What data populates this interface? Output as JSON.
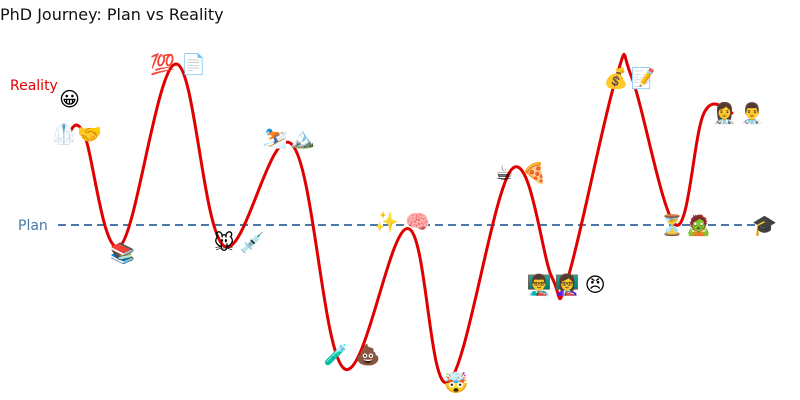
{
  "chart_data": {
    "type": "line",
    "title": "PhD Journey: Plan vs Reality",
    "xlabel": "",
    "ylabel": "",
    "xlim": [
      0,
      100
    ],
    "ylim": [
      0,
      100
    ],
    "grid": false,
    "axes_visible": false,
    "series": [
      {
        "name": "Plan",
        "color": "#4a78a8",
        "style": "dashed",
        "x": [
          2,
          99
        ],
        "y": [
          50,
          50
        ]
      },
      {
        "name": "Reality",
        "color": "#e00000",
        "style": "solid",
        "x": [
          8.5,
          10.5,
          15,
          22,
          28,
          36.5,
          43,
          51,
          56,
          64,
          69,
          71,
          77,
          79,
          84.5,
          88,
          91.5
        ],
        "y": [
          76,
          76,
          44,
          96,
          44,
          73,
          9,
          49,
          5,
          66,
          35,
          35,
          92,
          92,
          50,
          82,
          82
        ]
      }
    ],
    "annotations": [
      {
        "x": 8.7,
        "y": 86,
        "emoji": "😀"
      },
      {
        "x": 8.0,
        "y": 76,
        "emoji": "🥼"
      },
      {
        "x": 11.2,
        "y": 76,
        "emoji": "🤝"
      },
      {
        "x": 15.3,
        "y": 42,
        "emoji": "📚"
      },
      {
        "x": 20.3,
        "y": 96,
        "emoji": "💯"
      },
      {
        "x": 24.2,
        "y": 96,
        "emoji": "📄"
      },
      {
        "x": 28.0,
        "y": 45,
        "emoji": "🐭"
      },
      {
        "x": 31.5,
        "y": 45,
        "emoji": "💉"
      },
      {
        "x": 34.4,
        "y": 75,
        "emoji": "⛷️"
      },
      {
        "x": 37.8,
        "y": 75,
        "emoji": "🏔️"
      },
      {
        "x": 42.0,
        "y": 13,
        "emoji": "🧪"
      },
      {
        "x": 46.0,
        "y": 13,
        "emoji": "💩"
      },
      {
        "x": 48.3,
        "y": 51,
        "emoji": "✨"
      },
      {
        "x": 52.2,
        "y": 51,
        "emoji": "🧠"
      },
      {
        "x": 57.0,
        "y": 5,
        "emoji": "🤯"
      },
      {
        "x": 63.0,
        "y": 65,
        "emoji": "☕"
      },
      {
        "x": 66.8,
        "y": 65,
        "emoji": "🍕"
      },
      {
        "x": 67.4,
        "y": 33,
        "emoji": "👨‍🏫"
      },
      {
        "x": 70.9,
        "y": 33,
        "emoji": "👩‍🏫"
      },
      {
        "x": 74.4,
        "y": 33,
        "emoji": "😠"
      },
      {
        "x": 77.0,
        "y": 92,
        "emoji": "💰"
      },
      {
        "x": 80.4,
        "y": 92,
        "emoji": "📝"
      },
      {
        "x": 84.0,
        "y": 50,
        "emoji": "⏳"
      },
      {
        "x": 87.3,
        "y": 50,
        "emoji": "🧟"
      },
      {
        "x": 90.6,
        "y": 82,
        "emoji": "👩‍⚕️"
      },
      {
        "x": 94.0,
        "y": 82,
        "emoji": "👨‍⚕️"
      },
      {
        "x": 95.6,
        "y": 50,
        "emoji": "🎓"
      }
    ]
  }
}
